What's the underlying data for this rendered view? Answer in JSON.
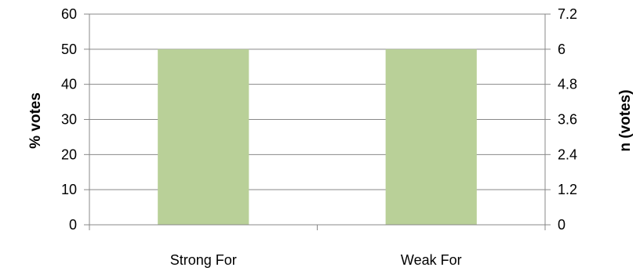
{
  "chart_data": {
    "type": "bar",
    "categories": [
      "Strong For",
      "Weak For"
    ],
    "series": [
      {
        "values": [
          50,
          50
        ],
        "color": "#b9d098"
      }
    ],
    "ylabel": "% votes",
    "y2label": "n (votes)",
    "ylim": [
      0,
      60
    ],
    "y_ticks": [
      "0",
      "10",
      "20",
      "30",
      "40",
      "50",
      "60"
    ],
    "y2lim": [
      0,
      7.2
    ],
    "y2_ticks": [
      "0",
      "1.2",
      "2.4",
      "3.6",
      "4.8",
      "6",
      "7.2"
    ],
    "grid": true,
    "gridline_color": "#888888",
    "axis_color": "#888888"
  }
}
